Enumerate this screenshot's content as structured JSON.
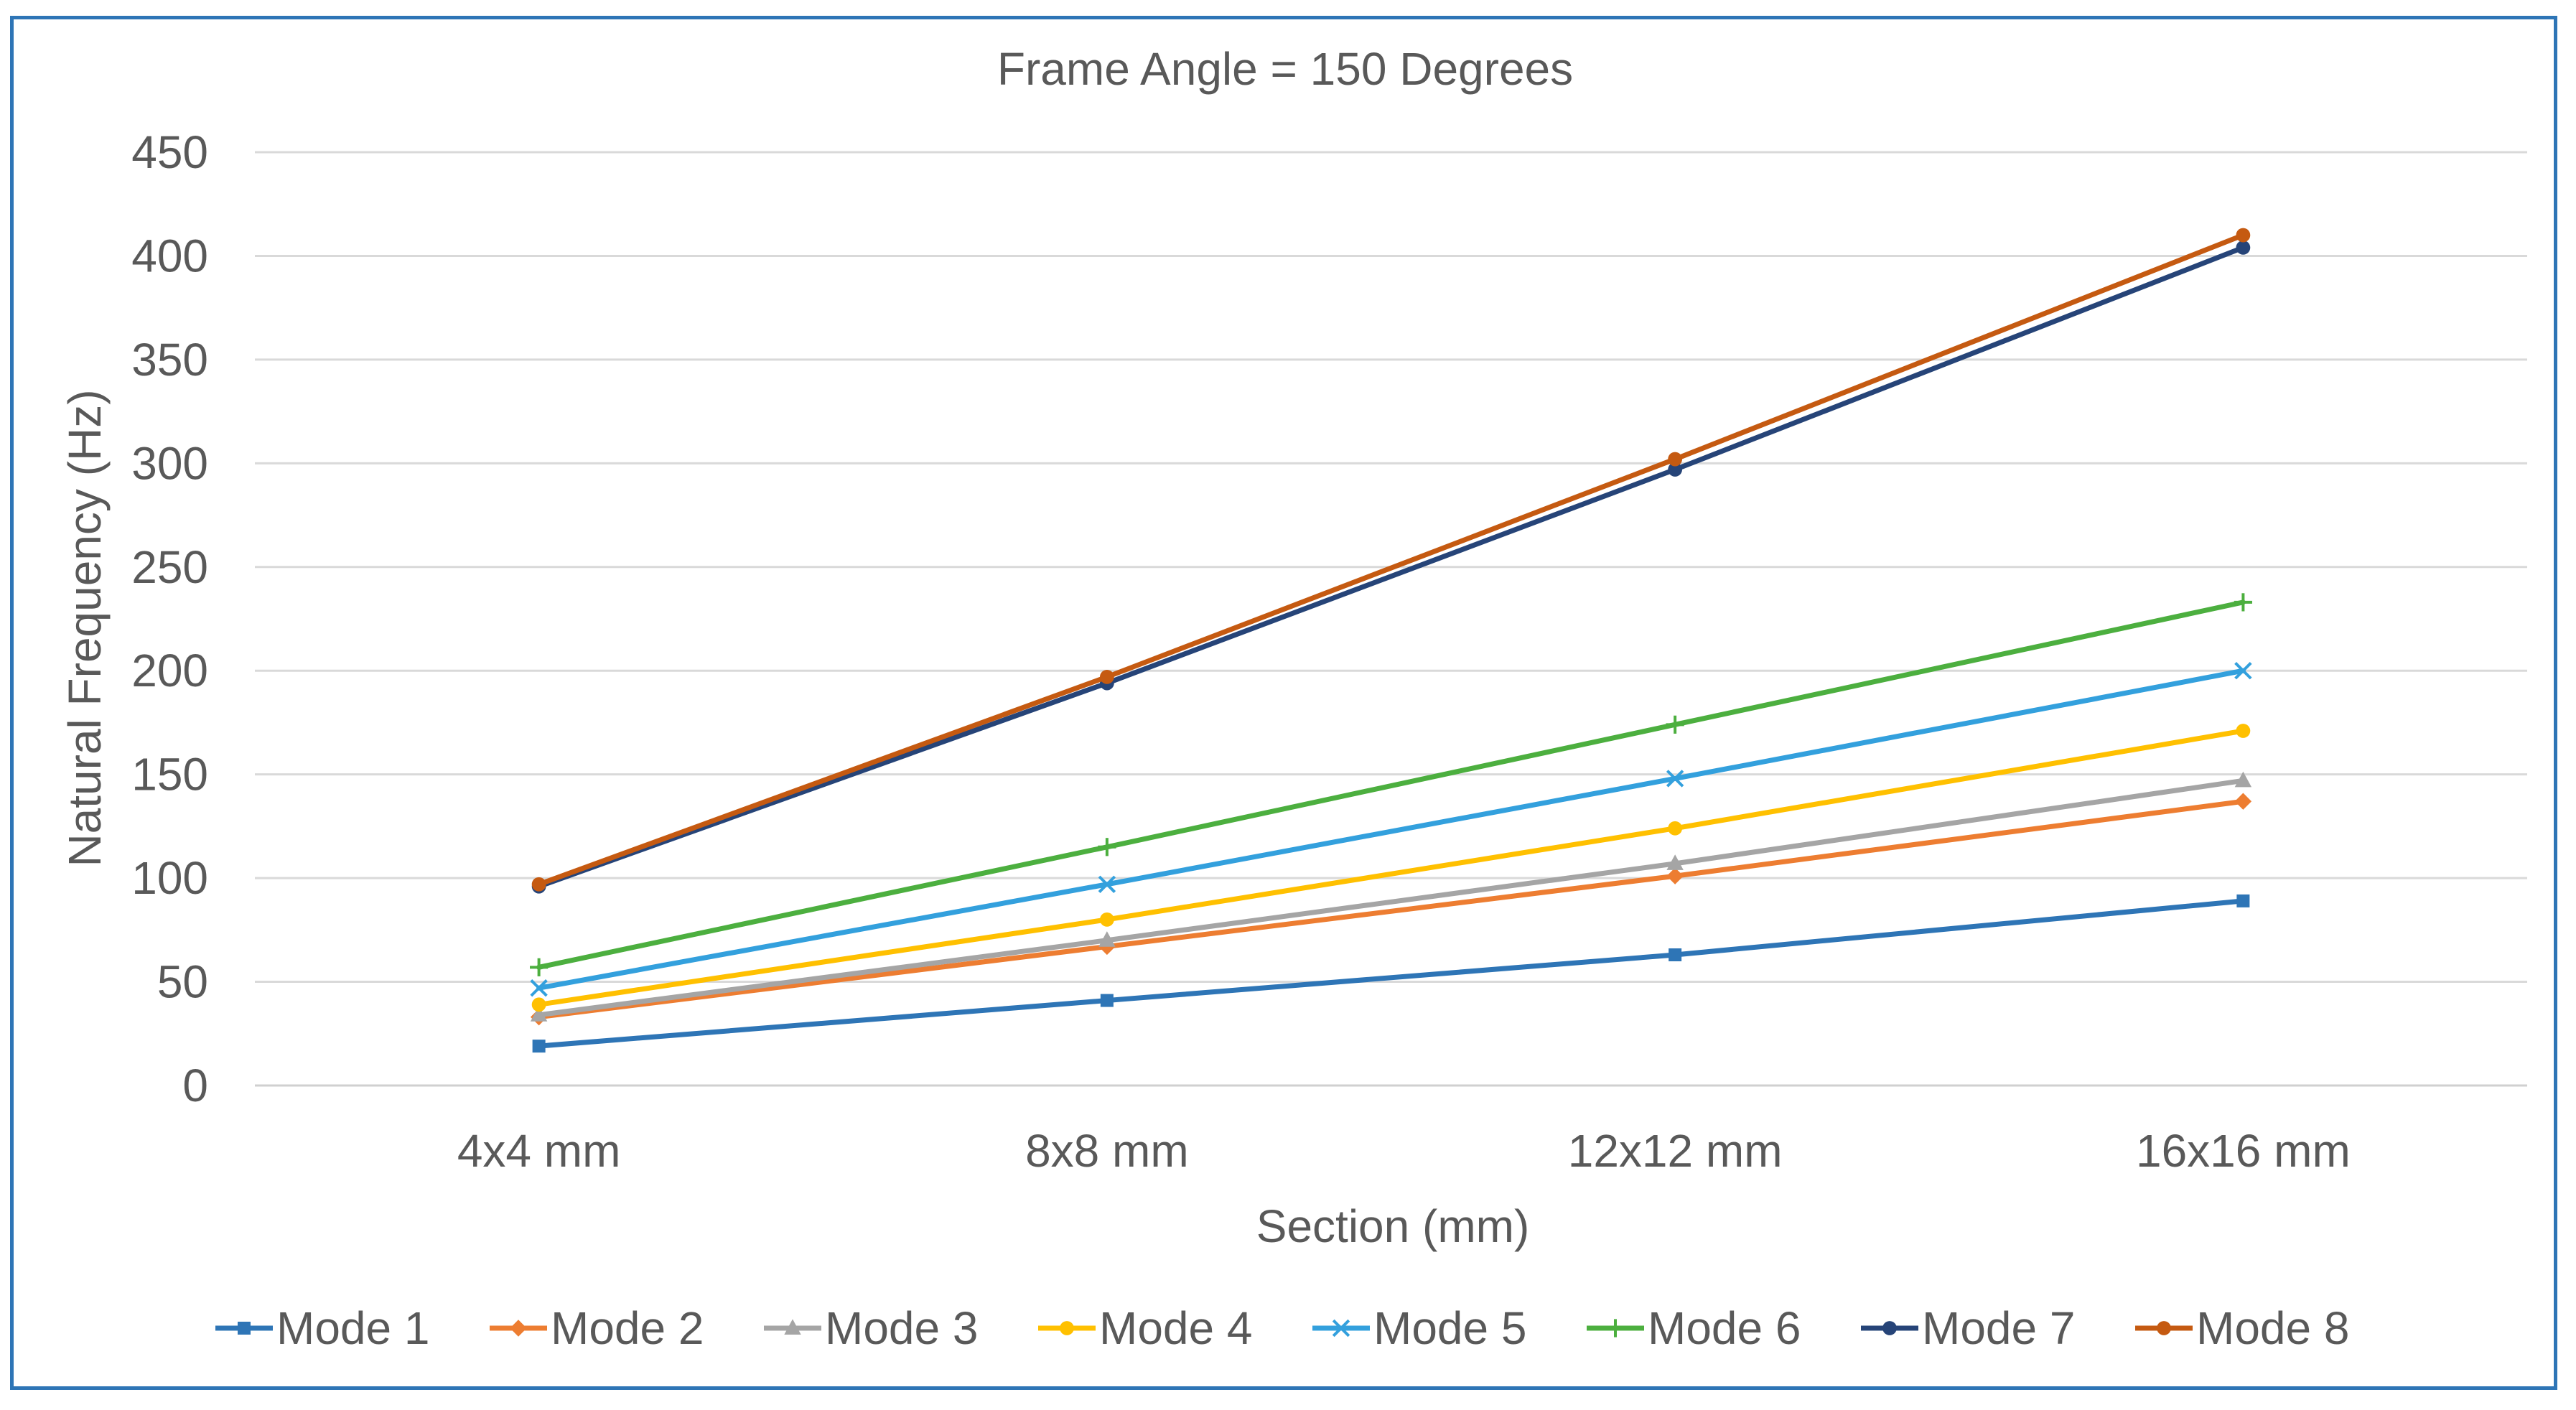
{
  "chart_data": {
    "type": "line",
    "title": "Frame Angle = 150 Degrees",
    "xlabel": "Section (mm)",
    "ylabel": "Natural Frequency (Hz)",
    "categories": [
      "4x4 mm",
      "8x8 mm",
      "12x12 mm",
      "16x16 mm"
    ],
    "ylim": [
      0,
      450
    ],
    "yticks": [
      0,
      50,
      100,
      150,
      200,
      250,
      300,
      350,
      400,
      450
    ],
    "grid": "horizontal",
    "legend_position": "bottom",
    "series": [
      {
        "name": "Mode 1",
        "values": [
          19,
          41,
          63,
          89
        ],
        "color": "#2e75b6",
        "marker": "square"
      },
      {
        "name": "Mode 2",
        "values": [
          33,
          67,
          101,
          137
        ],
        "color": "#ed7d31",
        "marker": "diamond"
      },
      {
        "name": "Mode 3",
        "values": [
          34,
          70,
          107,
          147
        ],
        "color": "#a5a5a5",
        "marker": "triangle"
      },
      {
        "name": "Mode 4",
        "values": [
          39,
          80,
          124,
          171
        ],
        "color": "#ffc000",
        "marker": "circle"
      },
      {
        "name": "Mode 5",
        "values": [
          47,
          97,
          148,
          200
        ],
        "color": "#33a0dd",
        "marker": "x"
      },
      {
        "name": "Mode 6",
        "values": [
          57,
          115,
          174,
          233
        ],
        "color": "#4caf3f",
        "marker": "plus"
      },
      {
        "name": "Mode 7",
        "values": [
          96,
          194,
          297,
          404
        ],
        "color": "#264478",
        "marker": "circle"
      },
      {
        "name": "Mode 8",
        "values": [
          97,
          197,
          302,
          410
        ],
        "color": "#c55a11",
        "marker": "circle"
      }
    ]
  }
}
